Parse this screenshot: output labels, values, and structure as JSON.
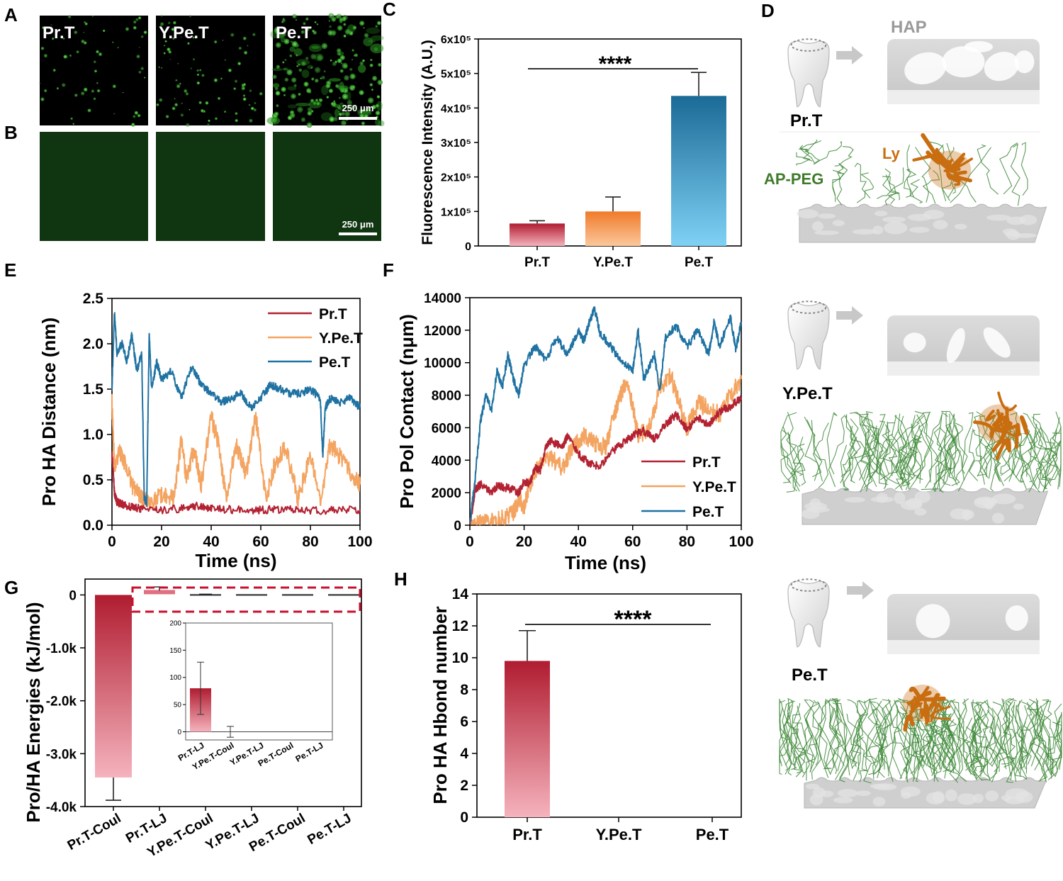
{
  "panels": {
    "A": "A",
    "B": "B",
    "C": "C",
    "D": "D",
    "E": "E",
    "F": "F",
    "G": "G",
    "H": "H"
  },
  "micro": {
    "labels": [
      "Pr.T",
      "Y.Pe.T",
      "Pe.T"
    ],
    "scalebar_a": "250 μm",
    "scalebar_b": "250 μm"
  },
  "schematic": {
    "hap_label": "HAP",
    "ly_label": "Ly",
    "ap_peg_label": "AP-PEG",
    "tooth_labels": [
      "Pr.T",
      "Y.Pe.T",
      "Pe.T"
    ],
    "colors": {
      "peg": "#3f8a3a",
      "lysozyme": "#c86e10",
      "surface": "#cfcfcf"
    }
  },
  "chart_data": [
    {
      "panel": "C",
      "type": "bar",
      "categories": [
        "Pr.T",
        "Y.Pe.T",
        "Pe.T"
      ],
      "values": [
        65000,
        100000,
        435000
      ],
      "errors": [
        8000,
        42000,
        68000
      ],
      "ylabel": "Fluorescence Intensity (A.U.)",
      "ylim": [
        0,
        600000
      ],
      "yticks": [
        "0",
        "1x10⁵",
        "2x10⁵",
        "3x10⁵",
        "4x10⁵",
        "5x10⁵",
        "6x10⁵"
      ],
      "significance": "****",
      "colors": [
        "#b8283a",
        "#f28a3c",
        "#1f6f99"
      ]
    },
    {
      "panel": "E",
      "type": "line",
      "xlabel": "Time (ns)",
      "ylabel": "Pro HA Distance (nm)",
      "xlim": [
        0,
        100
      ],
      "ylim": [
        0,
        2.5
      ],
      "xticks": [
        "0",
        "20",
        "40",
        "60",
        "80",
        "100"
      ],
      "yticks": [
        "0.0",
        "0.5",
        "1.0",
        "1.5",
        "2.0",
        "2.5"
      ],
      "legend_position": "top-right",
      "series": [
        {
          "name": "Pr.T",
          "color": "#b32232",
          "x": [
            0,
            1,
            2,
            3,
            5,
            8,
            12,
            20,
            30,
            36,
            40,
            50,
            60,
            70,
            80,
            90,
            100
          ],
          "y": [
            0.8,
            0.35,
            0.26,
            0.24,
            0.22,
            0.2,
            0.18,
            0.17,
            0.19,
            0.22,
            0.18,
            0.17,
            0.17,
            0.17,
            0.16,
            0.17,
            0.17
          ]
        },
        {
          "name": "Y.Pe.T",
          "color": "#f4a461",
          "x": [
            0,
            1,
            3,
            5,
            8,
            12,
            16,
            20,
            25,
            28,
            30,
            33,
            36,
            40,
            43,
            46,
            50,
            54,
            58,
            62,
            66,
            70,
            75,
            80,
            84,
            88,
            92,
            96,
            100
          ],
          "y": [
            1.35,
            0.65,
            0.8,
            0.7,
            0.45,
            0.3,
            0.25,
            0.35,
            0.3,
            0.95,
            0.5,
            0.85,
            0.45,
            1.2,
            0.9,
            0.3,
            0.9,
            0.55,
            1.2,
            0.3,
            0.7,
            0.85,
            0.3,
            0.75,
            0.25,
            0.9,
            0.75,
            0.6,
            0.45
          ]
        },
        {
          "name": "Pe.T",
          "color": "#1f72a2",
          "x": [
            0,
            1,
            2,
            4,
            6,
            8,
            10,
            12,
            13,
            14,
            15,
            16,
            18,
            20,
            24,
            28,
            32,
            36,
            40,
            44,
            48,
            52,
            56,
            60,
            64,
            68,
            72,
            76,
            80,
            84,
            85,
            86,
            88,
            92,
            96,
            100
          ],
          "y": [
            1.5,
            2.35,
            1.9,
            2.0,
            1.8,
            2.1,
            1.7,
            1.9,
            0.3,
            0.25,
            2.1,
            1.5,
            1.8,
            1.6,
            1.7,
            1.4,
            1.75,
            1.55,
            1.45,
            1.35,
            1.4,
            1.45,
            1.3,
            1.4,
            1.55,
            1.5,
            1.45,
            1.45,
            1.5,
            1.4,
            0.75,
            1.3,
            1.4,
            1.35,
            1.4,
            1.3
          ]
        }
      ]
    },
    {
      "panel": "F",
      "type": "line",
      "xlabel": "Time (ns)",
      "ylabel": "Pro Pol Contact (nμm)",
      "xlim": [
        0,
        100
      ],
      "ylim": [
        0,
        14000
      ],
      "xticks": [
        "0",
        "20",
        "40",
        "60",
        "80",
        "100"
      ],
      "yticks": [
        "0",
        "2000",
        "4000",
        "6000",
        "8000",
        "10000",
        "12000",
        "14000"
      ],
      "legend_position": "bottom-right",
      "series": [
        {
          "name": "Pr.T",
          "color": "#b32232",
          "x": [
            0,
            2,
            4,
            8,
            10,
            14,
            18,
            20,
            22,
            24,
            26,
            28,
            30,
            34,
            36,
            40,
            44,
            48,
            52,
            56,
            60,
            64,
            68,
            72,
            76,
            80,
            84,
            88,
            92,
            96,
            100
          ],
          "y": [
            0,
            2200,
            2500,
            2000,
            2400,
            2300,
            2000,
            2700,
            2500,
            3500,
            3400,
            4800,
            5200,
            4800,
            5500,
            4400,
            3800,
            3600,
            4500,
            5000,
            5500,
            5800,
            5300,
            6200,
            6800,
            5900,
            6600,
            6200,
            7000,
            7300,
            7800
          ]
        },
        {
          "name": "Y.Pe.T",
          "color": "#f4a461",
          "x": [
            0,
            4,
            8,
            12,
            16,
            18,
            20,
            22,
            26,
            30,
            34,
            38,
            42,
            46,
            50,
            54,
            56,
            58,
            62,
            66,
            70,
            74,
            78,
            80,
            84,
            88,
            92,
            96,
            100
          ],
          "y": [
            0,
            100,
            200,
            400,
            800,
            1600,
            1000,
            2500,
            3800,
            4200,
            3500,
            4800,
            5500,
            5000,
            4800,
            7200,
            8200,
            9000,
            5500,
            6000,
            8500,
            9200,
            7000,
            6000,
            7500,
            7200,
            6800,
            8000,
            9000
          ]
        },
        {
          "name": "Pe.T",
          "color": "#1f72a2",
          "x": [
            0,
            2,
            4,
            6,
            8,
            10,
            12,
            14,
            16,
            18,
            20,
            24,
            28,
            32,
            36,
            40,
            42,
            44,
            46,
            48,
            52,
            56,
            60,
            62,
            64,
            68,
            70,
            72,
            76,
            80,
            84,
            88,
            90,
            92,
            96,
            98,
            100
          ],
          "y": [
            0,
            3000,
            6500,
            8000,
            7000,
            9500,
            8500,
            10500,
            9000,
            8000,
            9800,
            11000,
            10200,
            11500,
            10500,
            12000,
            11300,
            12500,
            13300,
            11800,
            11000,
            10000,
            9500,
            12000,
            9000,
            10500,
            8200,
            11500,
            12300,
            11000,
            12000,
            10500,
            12500,
            11000,
            12800,
            10800,
            12500
          ]
        }
      ]
    },
    {
      "panel": "G",
      "type": "bar",
      "categories": [
        "Pr.T-Coul",
        "Pr.T-LJ",
        "Y.Pe.T-Coul",
        "Y.Pe.T-LJ",
        "Pe.T-Coul",
        "Pe.T-LJ"
      ],
      "values": [
        -3450,
        80,
        0,
        0,
        0,
        0
      ],
      "errors": [
        430,
        48,
        10,
        0,
        0,
        0
      ],
      "ylabel": "Pro/HA Energies (kJ/mol)",
      "ylim": [
        -4000,
        300
      ],
      "yticks": [
        "0",
        "-1.0k",
        "-2.0k",
        "-3.0k",
        "-4.0k"
      ],
      "inset": {
        "categories": [
          "Pr.T-LJ",
          "Y.Pe.T-Coul",
          "Y.Pe.T-LJ",
          "Pe.T-Coul",
          "Pe.T-LJ"
        ],
        "values": [
          80,
          0,
          0,
          0,
          0
        ],
        "errors": [
          48,
          10,
          0,
          0,
          0
        ],
        "ylim": [
          -15,
          200
        ],
        "yticks": [
          "0",
          "50",
          "100",
          "150",
          "200"
        ]
      }
    },
    {
      "panel": "H",
      "type": "bar",
      "categories": [
        "Pr.T",
        "Y.Pe.T",
        "Pe.T"
      ],
      "values": [
        9.8,
        0,
        0
      ],
      "errors": [
        1.9,
        0,
        0
      ],
      "ylabel": "Pro HA Hbond number",
      "ylim": [
        0,
        14
      ],
      "yticks": [
        "0",
        "2",
        "4",
        "6",
        "8",
        "10",
        "12",
        "14"
      ],
      "significance": "****"
    }
  ]
}
